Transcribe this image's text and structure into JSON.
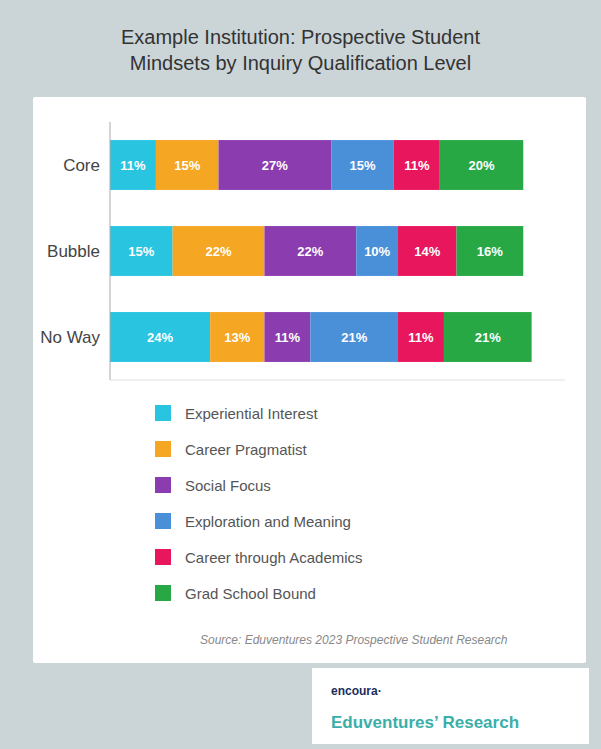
{
  "chart_data": {
    "type": "bar",
    "orientation": "horizontal",
    "stacked": true,
    "data_labels": true,
    "tick_labels": "y",
    "legend": "bottom",
    "title": "Example Institution: Prospective Student",
    "subtitle": "Mindsets by Inquiry Qualification Level",
    "categories": [
      "Core",
      "Bubble",
      "No Way"
    ],
    "series": [
      {
        "name": "Experiential Interest",
        "color": "#29C4E0",
        "values": [
          11,
          15,
          24
        ],
        "value_labels": [
          "11%",
          "15%",
          "24%"
        ]
      },
      {
        "name": "Career Pragmatist",
        "color": "#F5A623",
        "values": [
          15,
          22,
          13
        ],
        "value_labels": [
          "15%",
          "22%",
          "13%"
        ]
      },
      {
        "name": "Social Focus",
        "color": "#8B3DAF",
        "values": [
          27,
          22,
          11
        ],
        "value_labels": [
          "27%",
          "22%",
          "11%"
        ]
      },
      {
        "name": "Exploration and Meaning",
        "color": "#4A90D9",
        "values": [
          15,
          10,
          21
        ],
        "value_labels": [
          "15%",
          "10%",
          "21%"
        ]
      },
      {
        "name": "Career through Academics",
        "color": "#E8175D",
        "values": [
          11,
          14,
          11
        ],
        "value_labels": [
          "11%",
          "14%",
          "11%"
        ]
      },
      {
        "name": "Grad School Bound",
        "color": "#27A844",
        "values": [
          20,
          16,
          21
        ],
        "value_labels": [
          "20%",
          "16%",
          "21%"
        ]
      }
    ],
    "xlim": [
      0,
      109
    ],
    "annotations": [
      "Source: Eduventures 2023 Prospective Student Research",
      "encoura·",
      "Eduventures’ Research"
    ]
  }
}
